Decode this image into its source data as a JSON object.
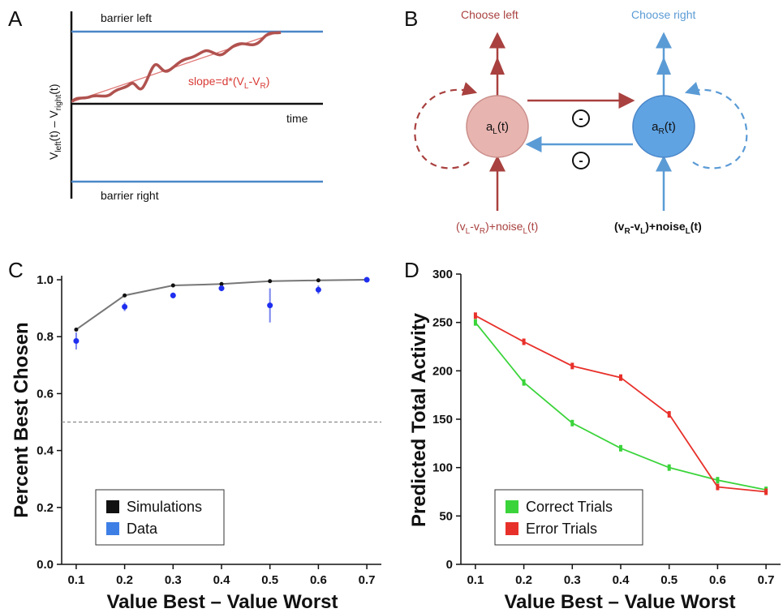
{
  "panels": {
    "a": {
      "label": "A",
      "barrier_left": "barrier left",
      "barrier_right": "barrier right",
      "time": "time",
      "slope": "slope=d*(V",
      "slope_sub_l": "L",
      "slope_mid": "-V",
      "slope_sub_r": "R",
      "slope_end": ")",
      "yaxis_label": "V",
      "yaxis_sub1": "left",
      "yaxis_mid": "(t) – V",
      "yaxis_sub2": "right",
      "yaxis_end": "(t)"
    },
    "b": {
      "label": "B",
      "choose_left": "Choose left",
      "choose_right": "Choose right",
      "node_left": "a",
      "node_left_sub": "L",
      "node_left_end": "(t)",
      "node_right": "a",
      "node_right_sub": "R",
      "node_right_end": "(t)",
      "minus": "-",
      "input_left_1": "(v",
      "input_left_s1": "L",
      "input_left_2": "-v",
      "input_left_s2": "R",
      "input_left_3": ")+noise",
      "input_left_s3": "L",
      "input_left_4": "(t)",
      "input_right_1": "(v",
      "input_right_s1": "R",
      "input_right_2": "-v",
      "input_right_s2": "L",
      "input_right_3": ")+noise",
      "input_right_s3": "L",
      "input_right_4": "(t)"
    },
    "c": {
      "label": "C"
    },
    "d": {
      "label": "D"
    }
  },
  "colors": {
    "blue_line": "#4a86c8",
    "dark_red": "#a8413f",
    "red_trace": "#c0504d",
    "light_blue": "#5b9bd5",
    "sim_black": "#111111",
    "data_blue": "#1f2ff0",
    "green": "#3ad43a",
    "red": "#e8302a"
  },
  "chart_data": [
    {
      "type": "line",
      "xlabel": "Value Best – Value Worst",
      "ylabel": "Percent Best Chosen",
      "xlim": [
        0.07,
        0.73
      ],
      "ylim": [
        0.0,
        1.04
      ],
      "xticks": [
        0.1,
        0.2,
        0.3,
        0.4,
        0.5,
        0.6,
        0.7
      ],
      "xtick_labels": [
        "0.1",
        "0.2",
        "0.3",
        "0.4",
        "0.5",
        "0.6",
        "0.7"
      ],
      "yticks": [
        0.0,
        0.2,
        0.4,
        0.6,
        0.8,
        1.0
      ],
      "ytick_labels": [
        "0.0",
        "0.2",
        "0.4",
        "0.6",
        "0.8",
        "1.0"
      ],
      "chance_line": 0.5,
      "legend_position": "bottom-left",
      "series": [
        {
          "name": "Simulations",
          "x": [
            0.1,
            0.2,
            0.3,
            0.4,
            0.5,
            0.6,
            0.7
          ],
          "values": [
            0.825,
            0.945,
            0.98,
            0.985,
            0.995,
            0.998,
            1.0
          ]
        },
        {
          "name": "Data",
          "x": [
            0.1,
            0.2,
            0.3,
            0.4,
            0.5,
            0.6,
            0.7
          ],
          "values": [
            0.785,
            0.905,
            0.945,
            0.97,
            0.91,
            0.965,
            1.0
          ],
          "error": [
            0.03,
            0.015,
            0.01,
            0.01,
            0.06,
            0.015,
            0.005
          ]
        }
      ]
    },
    {
      "type": "line",
      "xlabel": "Value Best – Value Worst",
      "ylabel": "Predicted Total Activity",
      "xlim": [
        0.07,
        0.73
      ],
      "ylim": [
        0,
        300
      ],
      "xticks": [
        0.1,
        0.2,
        0.3,
        0.4,
        0.5,
        0.6,
        0.7
      ],
      "xtick_labels": [
        "0.1",
        "0.2",
        "0.3",
        "0.4",
        "0.5",
        "0.6",
        "0.7"
      ],
      "yticks": [
        0,
        50,
        100,
        150,
        200,
        250,
        300
      ],
      "ytick_labels": [
        "0",
        "50",
        "100",
        "150",
        "200",
        "250",
        "300"
      ],
      "legend_position": "bottom-left",
      "series": [
        {
          "name": "Correct Trials",
          "x": [
            0.1,
            0.2,
            0.3,
            0.4,
            0.5,
            0.6,
            0.7
          ],
          "values": [
            250,
            188,
            146,
            120,
            100,
            87,
            77
          ]
        },
        {
          "name": "Error Trials",
          "x": [
            0.1,
            0.2,
            0.3,
            0.4,
            0.5,
            0.6,
            0.7
          ],
          "values": [
            257,
            230,
            205,
            193,
            155,
            80,
            75
          ]
        }
      ]
    }
  ]
}
